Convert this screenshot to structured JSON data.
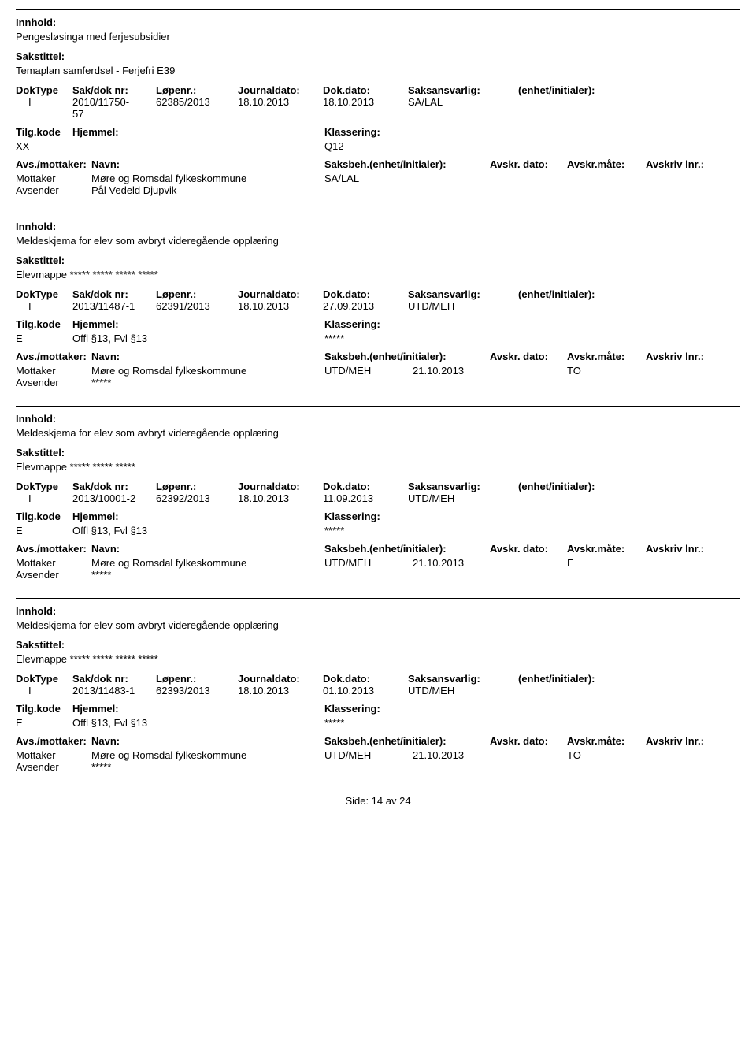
{
  "labels": {
    "innhold": "Innhold:",
    "sakstittel": "Sakstittel:",
    "doktype": "DokType",
    "sakdoknr": "Sak/dok nr:",
    "lopenr": "Løpenr.:",
    "journaldato": "Journaldato:",
    "dokdato": "Dok.dato:",
    "saksansvarlig": "Saksansvarlig:",
    "enhet": "(enhet/initialer):",
    "tilgkode": "Tilg.kode",
    "hjemmel": "Hjemmel:",
    "klassering": "Klassering:",
    "avsmottaker": "Avs./mottaker:",
    "navn": "Navn:",
    "saksbeh": "Saksbeh.",
    "saksbeh_enhet": "(enhet/initialer):",
    "avskr_dato": "Avskr. dato:",
    "avskr_mate": "Avskr.måte:",
    "avskriv_lnr": "Avskriv lnr.:",
    "mottaker": "Mottaker",
    "avsender": "Avsender"
  },
  "footer": {
    "text": "Side: 14 av 24"
  },
  "entries": [
    {
      "innhold": "Pengesløsinga med ferjesubsidier",
      "sakstittel": "Temaplan samferdsel - Ferjefri E39",
      "doktype": "I",
      "sakdoknr_line1": "2010/11750-",
      "sakdoknr_line2": "57",
      "lopenr": "62385/2013",
      "journaldato": "18.10.2013",
      "dokdato": "18.10.2013",
      "saksansvarlig": "SA/LAL",
      "tilgkode": "XX",
      "hjemmel": "",
      "klassering": "Q12",
      "mottaker_navn": "Møre og Romsdal fylkeskommune",
      "saksbeh": "SA/LAL",
      "avskr_dato": "",
      "avskr_mate": "",
      "avsender_navn": "Pål Vedeld Djupvik",
      "show_am_hdr": false
    },
    {
      "innhold": "Meldeskjema for elev som avbryt videregående opplæring",
      "sakstittel": "Elevmappe ***** ***** ***** *****",
      "doktype": "I",
      "sakdoknr_line1": "2013/11487-1",
      "sakdoknr_line2": "",
      "lopenr": "62391/2013",
      "journaldato": "18.10.2013",
      "dokdato": "27.09.2013",
      "saksansvarlig": "UTD/MEH",
      "tilgkode": "E",
      "hjemmel": "Offl §13, Fvl §13",
      "klassering": "*****",
      "mottaker_navn": "Møre og Romsdal fylkeskommune",
      "saksbeh": "UTD/MEH",
      "avskr_dato": "21.10.2013",
      "avskr_mate": "TO",
      "avsender_navn": "*****",
      "show_am_hdr": false
    },
    {
      "innhold": "Meldeskjema for elev som avbryt videregående opplæring",
      "sakstittel": "Elevmappe ***** ***** *****",
      "doktype": "I",
      "sakdoknr_line1": "2013/10001-2",
      "sakdoknr_line2": "",
      "lopenr": "62392/2013",
      "journaldato": "18.10.2013",
      "dokdato": "11.09.2013",
      "saksansvarlig": "UTD/MEH",
      "tilgkode": "E",
      "hjemmel": "Offl §13, Fvl §13",
      "klassering": "*****",
      "mottaker_navn": "Møre og Romsdal fylkeskommune",
      "saksbeh": "UTD/MEH",
      "avskr_dato": "21.10.2013",
      "avskr_mate": "E",
      "avsender_navn": "*****",
      "show_am_hdr": true
    },
    {
      "innhold": "Meldeskjema for elev som avbryt videregående opplæring",
      "sakstittel": "Elevmappe ***** ***** ***** *****",
      "doktype": "I",
      "sakdoknr_line1": "2013/11483-1",
      "sakdoknr_line2": "",
      "lopenr": "62393/2013",
      "journaldato": "18.10.2013",
      "dokdato": "01.10.2013",
      "saksansvarlig": "UTD/MEH",
      "tilgkode": "E",
      "hjemmel": "Offl §13, Fvl §13",
      "klassering": "*****",
      "mottaker_navn": "Møre og Romsdal fylkeskommune",
      "saksbeh": "UTD/MEH",
      "avskr_dato": "21.10.2013",
      "avskr_mate": "TO",
      "avsender_navn": "*****",
      "show_am_hdr": true
    }
  ]
}
